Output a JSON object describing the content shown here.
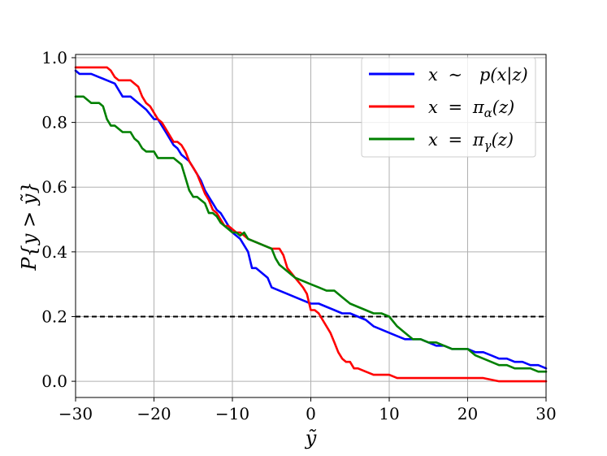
{
  "chart_data": {
    "type": "line",
    "xlabel": "ỹ",
    "ylabel": "P{y > ỹ}",
    "xlim": [
      -30,
      30
    ],
    "ylim": [
      -0.05,
      1.01
    ],
    "xticks": [
      -30,
      -20,
      -10,
      0,
      10,
      20,
      30
    ],
    "xtick_labels": [
      "−30",
      "−20",
      "−10",
      "0",
      "10",
      "20",
      "30"
    ],
    "yticks": [
      0.0,
      0.2,
      0.4,
      0.6,
      0.8,
      1.0
    ],
    "ytick_labels": [
      "0.0",
      "0.2",
      "0.4",
      "0.6",
      "0.8",
      "1.0"
    ],
    "grid": true,
    "legend_position": "top-right",
    "reference_line": {
      "y": 0.2,
      "style": "dashed",
      "color": "#000000"
    },
    "series": [
      {
        "name": "x ∼  p(x|z)",
        "color": "#0000ff",
        "x": [
          -30,
          -29.5,
          -29,
          -28,
          -27,
          -26,
          -25,
          -24.5,
          -24,
          -23,
          -22.5,
          -22,
          -21,
          -20,
          -19.5,
          -19,
          -18.5,
          -18,
          -17.5,
          -17,
          -16.5,
          -16,
          -15.5,
          -15,
          -14.5,
          -14,
          -13.5,
          -13,
          -12.5,
          -12,
          -11.5,
          -11,
          -10.5,
          -10,
          -9,
          -8.5,
          -8,
          -7.5,
          -7,
          -6,
          -5.5,
          -5,
          -4,
          -3,
          -2,
          -1,
          0,
          1,
          2,
          3,
          4,
          5,
          6,
          7,
          8,
          9,
          10,
          11,
          12,
          13,
          14,
          15,
          16,
          17,
          18,
          19,
          20,
          21,
          22,
          23,
          24,
          25,
          26,
          27,
          28,
          29,
          30
        ],
        "y": [
          0.96,
          0.95,
          0.95,
          0.95,
          0.94,
          0.93,
          0.92,
          0.9,
          0.88,
          0.88,
          0.87,
          0.86,
          0.84,
          0.81,
          0.81,
          0.79,
          0.77,
          0.75,
          0.73,
          0.72,
          0.7,
          0.69,
          0.68,
          0.66,
          0.64,
          0.62,
          0.59,
          0.57,
          0.55,
          0.53,
          0.52,
          0.5,
          0.48,
          0.46,
          0.44,
          0.42,
          0.4,
          0.35,
          0.35,
          0.33,
          0.32,
          0.29,
          0.28,
          0.27,
          0.26,
          0.25,
          0.24,
          0.24,
          0.23,
          0.22,
          0.21,
          0.21,
          0.2,
          0.19,
          0.17,
          0.16,
          0.15,
          0.14,
          0.13,
          0.13,
          0.13,
          0.12,
          0.11,
          0.11,
          0.1,
          0.1,
          0.1,
          0.09,
          0.09,
          0.08,
          0.07,
          0.07,
          0.06,
          0.06,
          0.05,
          0.05,
          0.04
        ]
      },
      {
        "name": "x = πα(z)",
        "color": "#ff0000",
        "x": [
          -30,
          -29,
          -28,
          -27,
          -26,
          -25.5,
          -25,
          -24.5,
          -24,
          -23,
          -22.5,
          -22,
          -21.5,
          -21,
          -20.5,
          -20,
          -19.5,
          -19,
          -18.5,
          -18,
          -17.5,
          -17,
          -16.5,
          -16,
          -15.5,
          -15,
          -14.5,
          -14,
          -13.5,
          -13,
          -12.5,
          -12,
          -11.5,
          -11,
          -10.5,
          -10,
          -9.5,
          -9,
          -8.5,
          -8,
          -7,
          -6,
          -5,
          -4,
          -3.5,
          -3,
          -2,
          -1,
          -0.5,
          0,
          0.5,
          1,
          1.5,
          2,
          2.5,
          3,
          3.5,
          4,
          4.5,
          5,
          5.5,
          6,
          7,
          8,
          9,
          10,
          11,
          12,
          14,
          16,
          18,
          20,
          22,
          24,
          26,
          28,
          30
        ],
        "y": [
          0.97,
          0.97,
          0.97,
          0.97,
          0.97,
          0.96,
          0.94,
          0.93,
          0.93,
          0.93,
          0.92,
          0.91,
          0.88,
          0.86,
          0.85,
          0.83,
          0.81,
          0.8,
          0.78,
          0.76,
          0.74,
          0.74,
          0.73,
          0.71,
          0.68,
          0.66,
          0.64,
          0.61,
          0.58,
          0.56,
          0.53,
          0.52,
          0.5,
          0.48,
          0.48,
          0.47,
          0.46,
          0.46,
          0.45,
          0.44,
          0.43,
          0.42,
          0.41,
          0.41,
          0.39,
          0.35,
          0.32,
          0.29,
          0.27,
          0.22,
          0.22,
          0.21,
          0.19,
          0.17,
          0.15,
          0.12,
          0.09,
          0.07,
          0.06,
          0.06,
          0.04,
          0.04,
          0.03,
          0.02,
          0.02,
          0.02,
          0.01,
          0.01,
          0.01,
          0.01,
          0.01,
          0.01,
          0.01,
          0.0,
          0.0,
          0.0,
          0.0
        ]
      },
      {
        "name": "x = πγ(z)",
        "color": "#008000",
        "x": [
          -30,
          -29,
          -28,
          -27,
          -26.5,
          -26,
          -25.5,
          -25,
          -24,
          -23,
          -22.5,
          -22,
          -21.5,
          -21,
          -20,
          -19.5,
          -19,
          -18,
          -17.5,
          -17,
          -16.5,
          -16,
          -15.5,
          -15,
          -14.5,
          -14,
          -13.5,
          -13,
          -12.5,
          -12,
          -11.5,
          -11,
          -10.5,
          -10,
          -9.5,
          -9,
          -8.5,
          -8,
          -7,
          -6,
          -5,
          -4.5,
          -4,
          -3,
          -2,
          -1,
          0,
          1,
          2,
          3,
          4,
          5,
          6,
          7,
          8,
          9,
          10,
          11,
          12,
          13,
          14,
          15,
          16,
          17,
          18,
          19,
          20,
          21,
          22,
          23,
          24,
          25,
          26,
          27,
          28,
          29,
          30
        ],
        "y": [
          0.88,
          0.88,
          0.86,
          0.86,
          0.85,
          0.81,
          0.79,
          0.79,
          0.77,
          0.77,
          0.75,
          0.74,
          0.72,
          0.71,
          0.71,
          0.69,
          0.69,
          0.69,
          0.69,
          0.68,
          0.67,
          0.63,
          0.59,
          0.57,
          0.57,
          0.56,
          0.55,
          0.52,
          0.52,
          0.51,
          0.49,
          0.48,
          0.47,
          0.46,
          0.46,
          0.45,
          0.46,
          0.44,
          0.43,
          0.42,
          0.41,
          0.38,
          0.36,
          0.34,
          0.32,
          0.31,
          0.3,
          0.29,
          0.28,
          0.28,
          0.26,
          0.24,
          0.23,
          0.22,
          0.21,
          0.21,
          0.2,
          0.17,
          0.15,
          0.13,
          0.13,
          0.12,
          0.12,
          0.11,
          0.1,
          0.1,
          0.1,
          0.08,
          0.07,
          0.06,
          0.05,
          0.05,
          0.04,
          0.04,
          0.04,
          0.03,
          0.03
        ]
      }
    ]
  },
  "legend": {
    "entry0": {
      "lhs": "x",
      "op": "∼",
      "rhs": "p(x|z)"
    },
    "entry1": {
      "lhs": "x",
      "op": "=",
      "rhs": "π",
      "sub": "α",
      "tail": "(z)"
    },
    "entry2": {
      "lhs": "x",
      "op": "=",
      "rhs": "π",
      "sub": "γ",
      "tail": "(z)"
    }
  }
}
